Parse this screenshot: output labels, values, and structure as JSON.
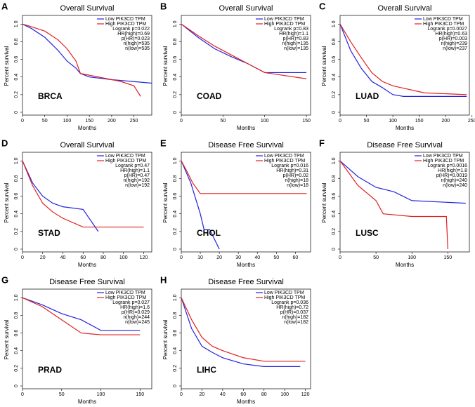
{
  "chart_data": [
    {
      "panel": "A",
      "type": "line",
      "title": "Overall Survival",
      "label": "BRCA",
      "stats": [
        "Logrank p=0.022",
        "HR(high)=0.69",
        "p(HR)=0.023",
        "n(high)=535",
        "n(low)=535"
      ],
      "xlabel": "Months",
      "ylabel": "Percent survival",
      "xlim": [
        0,
        290
      ],
      "ylim": [
        0,
        1.05
      ],
      "xticks": [
        0,
        50,
        100,
        150,
        200,
        250
      ],
      "yticks": [
        0,
        0.2,
        0.4,
        0.6,
        0.8,
        {
          "value": 1,
          "label": "1.0"
        }
      ],
      "series": [
        {
          "name": "Low PIK3CD TPM",
          "color": "#2222dd",
          "x": [
            0,
            20,
            50,
            80,
            100,
            120,
            130,
            150,
            200,
            290
          ],
          "values": [
            1,
            0.95,
            0.85,
            0.7,
            0.58,
            0.5,
            0.44,
            0.4,
            0.37,
            0.33
          ]
        },
        {
          "name": "High PIK3CD TPM",
          "color": "#e02020",
          "x": [
            0,
            20,
            50,
            80,
            100,
            120,
            130,
            220,
            250,
            265
          ],
          "values": [
            1,
            0.97,
            0.92,
            0.82,
            0.72,
            0.58,
            0.44,
            0.35,
            0.3,
            0.18
          ]
        }
      ]
    },
    {
      "panel": "B",
      "type": "line",
      "title": "Overall Survival",
      "label": "COAD",
      "stats": [
        "Logrank p=0.83",
        "HR(high)=1.1",
        "p(HR)=0.83",
        "n(high)=135",
        "n(low)=135"
      ],
      "xlabel": "Months",
      "ylabel": "Percent survival",
      "xlim": [
        0,
        155
      ],
      "ylim": [
        0,
        1.05
      ],
      "xticks": [
        0,
        50,
        100,
        150
      ],
      "yticks": [
        0,
        0.2,
        0.4,
        0.6,
        0.8,
        {
          "value": 1,
          "label": "1.0"
        }
      ],
      "series": [
        {
          "name": "Low PIK3CD TPM",
          "color": "#2222dd",
          "x": [
            0,
            20,
            40,
            60,
            80,
            100,
            150
          ],
          "values": [
            1,
            0.85,
            0.72,
            0.63,
            0.55,
            0.45,
            0.45
          ]
        },
        {
          "name": "High PIK3CD TPM",
          "color": "#e02020",
          "x": [
            0,
            20,
            40,
            60,
            80,
            100,
            150
          ],
          "values": [
            1,
            0.87,
            0.75,
            0.65,
            0.55,
            0.45,
            0.38
          ]
        }
      ]
    },
    {
      "panel": "C",
      "type": "line",
      "title": "Overall Survival",
      "label": "LUAD",
      "stats": [
        "Logrank p=0.0027",
        "HR(high)=0.63",
        "p(HR)=0.003",
        "n(high)=239",
        "n(low)=237"
      ],
      "xlabel": "Months",
      "ylabel": "Percent survival",
      "xlim": [
        0,
        245
      ],
      "ylim": [
        0,
        1.05
      ],
      "xticks": [
        0,
        50,
        100,
        150,
        200,
        250
      ],
      "yticks": [
        0,
        0.2,
        0.4,
        0.6,
        0.8,
        {
          "value": 1,
          "label": "1.0"
        }
      ],
      "series": [
        {
          "name": "Low PIK3CD TPM",
          "color": "#2222dd",
          "x": [
            0,
            20,
            40,
            60,
            80,
            100,
            120,
            240
          ],
          "values": [
            1,
            0.7,
            0.5,
            0.35,
            0.28,
            0.2,
            0.18,
            0.18
          ]
        },
        {
          "name": "High PIK3CD TPM",
          "color": "#e02020",
          "x": [
            0,
            20,
            40,
            60,
            80,
            100,
            160,
            240
          ],
          "values": [
            1,
            0.8,
            0.62,
            0.45,
            0.35,
            0.3,
            0.22,
            0.2
          ]
        }
      ]
    },
    {
      "panel": "D",
      "type": "line",
      "title": "Overall Survival",
      "label": "STAD",
      "stats": [
        "Logrank p=0.47",
        "HR(high)=1.1",
        "p(HR)=0.47",
        "n(high)=192",
        "n(low)=192"
      ],
      "xlabel": "Months",
      "ylabel": "Percent survival",
      "xlim": [
        0,
        128
      ],
      "ylim": [
        0,
        1.05
      ],
      "xticks": [
        0,
        20,
        40,
        60,
        80,
        100,
        120
      ],
      "yticks": [
        0,
        0.2,
        0.4,
        0.6,
        0.8,
        {
          "value": 1,
          "label": "1.0"
        }
      ],
      "series": [
        {
          "name": "Low PIK3CD TPM",
          "color": "#2222dd",
          "x": [
            0,
            10,
            20,
            30,
            40,
            60,
            75
          ],
          "values": [
            1,
            0.75,
            0.6,
            0.52,
            0.48,
            0.45,
            0.2
          ]
        },
        {
          "name": "High PIK3CD TPM",
          "color": "#e02020",
          "x": [
            0,
            10,
            20,
            30,
            40,
            60,
            120
          ],
          "values": [
            1,
            0.72,
            0.52,
            0.42,
            0.35,
            0.25,
            0.25
          ]
        }
      ]
    },
    {
      "panel": "E",
      "type": "line",
      "title": "Disease Free Survival",
      "label": "CHOL",
      "stats": [
        "Logrank p=0.016",
        "HR(high)=0.31",
        "p(HR)=0.02",
        "n(high)=18",
        "n(low)=18"
      ],
      "xlabel": "Months",
      "ylabel": "Percent survival",
      "xlim": [
        0,
        68
      ],
      "ylim": [
        0,
        1.05
      ],
      "xticks": [
        0,
        10,
        20,
        30,
        40,
        50,
        60
      ],
      "yticks": [
        0,
        0.2,
        0.4,
        0.6,
        0.8,
        {
          "value": 1,
          "label": "1.0"
        }
      ],
      "series": [
        {
          "name": "Low PIK3CD TPM",
          "color": "#2222dd",
          "x": [
            0,
            5,
            10,
            12,
            15,
            20
          ],
          "values": [
            1,
            0.75,
            0.4,
            0.22,
            0.22,
            0
          ]
        },
        {
          "name": "High PIK3CD TPM",
          "color": "#e02020",
          "x": [
            0,
            3,
            6,
            10,
            66
          ],
          "values": [
            1,
            0.88,
            0.75,
            0.63,
            0.63
          ]
        }
      ]
    },
    {
      "panel": "F",
      "type": "line",
      "title": "Disease Free Survival",
      "label": "LUSC",
      "stats": [
        "Logrank p=0.0016",
        "HR(high)=1.8",
        "p(HR)=0.0019",
        "n(high)=240",
        "n(low)=240"
      ],
      "xlabel": "Months",
      "ylabel": "Percent survival",
      "xlim": [
        0,
        180
      ],
      "ylim": [
        0,
        1.05
      ],
      "xticks": [
        0,
        50,
        100,
        150
      ],
      "yticks": [
        0,
        0.2,
        0.4,
        0.6,
        0.8,
        {
          "value": 1,
          "label": "1.0"
        }
      ],
      "series": [
        {
          "name": "Low PIK3CD TPM",
          "color": "#2222dd",
          "x": [
            0,
            25,
            50,
            75,
            100,
            175
          ],
          "values": [
            1,
            0.82,
            0.7,
            0.65,
            0.55,
            0.52
          ]
        },
        {
          "name": "High PIK3CD TPM",
          "color": "#e02020",
          "x": [
            0,
            25,
            50,
            60,
            100,
            148,
            150
          ],
          "values": [
            1,
            0.72,
            0.55,
            0.4,
            0.37,
            0.37,
            0
          ]
        }
      ]
    },
    {
      "panel": "G",
      "type": "line",
      "title": "Disease Free Survival",
      "label": "PRAD",
      "stats": [
        "Logrank p=0.027",
        "HR(high)=1.6",
        "p(HR)=0.029",
        "n(high)=244",
        "n(low)=245"
      ],
      "xlabel": "Months",
      "ylabel": "Percent survival",
      "xlim": [
        0,
        165
      ],
      "ylim": [
        0,
        1.05
      ],
      "xticks": [
        0,
        50,
        100,
        150
      ],
      "yticks": [
        0,
        0.2,
        0.4,
        0.6,
        0.8,
        {
          "value": 1,
          "label": "1.0"
        }
      ],
      "series": [
        {
          "name": "Low PIK3CD TPM",
          "color": "#2222dd",
          "x": [
            0,
            25,
            50,
            75,
            100,
            150
          ],
          "values": [
            1,
            0.92,
            0.82,
            0.75,
            0.63,
            0.63
          ]
        },
        {
          "name": "High PIK3CD TPM",
          "color": "#e02020",
          "x": [
            0,
            25,
            50,
            75,
            100,
            150
          ],
          "values": [
            1,
            0.9,
            0.75,
            0.6,
            0.58,
            0.58
          ]
        }
      ]
    },
    {
      "panel": "H",
      "type": "line",
      "title": "Disease Free Survival",
      "label": "LIHC",
      "stats": [
        "Logrank p=0.036",
        "HR(high)=0.72",
        "p(HR)=0.037",
        "n(high)=182",
        "n(low)=182"
      ],
      "xlabel": "Months",
      "ylabel": "Percent survival",
      "xlim": [
        0,
        125
      ],
      "ylim": [
        0,
        1.05
      ],
      "xticks": [
        0,
        20,
        40,
        60,
        80,
        100,
        120
      ],
      "yticks": [
        0,
        0.2,
        0.4,
        0.6,
        0.8,
        {
          "value": 1,
          "label": "1.0"
        }
      ],
      "series": [
        {
          "name": "Low PIK3CD TPM",
          "color": "#2222dd",
          "x": [
            0,
            10,
            20,
            30,
            40,
            60,
            80,
            115
          ],
          "values": [
            1,
            0.65,
            0.45,
            0.38,
            0.32,
            0.25,
            0.22,
            0.22
          ]
        },
        {
          "name": "High PIK3CD TPM",
          "color": "#e02020",
          "x": [
            0,
            10,
            20,
            30,
            40,
            60,
            80,
            120
          ],
          "values": [
            1,
            0.75,
            0.55,
            0.45,
            0.4,
            0.32,
            0.28,
            0.28
          ]
        }
      ]
    }
  ]
}
